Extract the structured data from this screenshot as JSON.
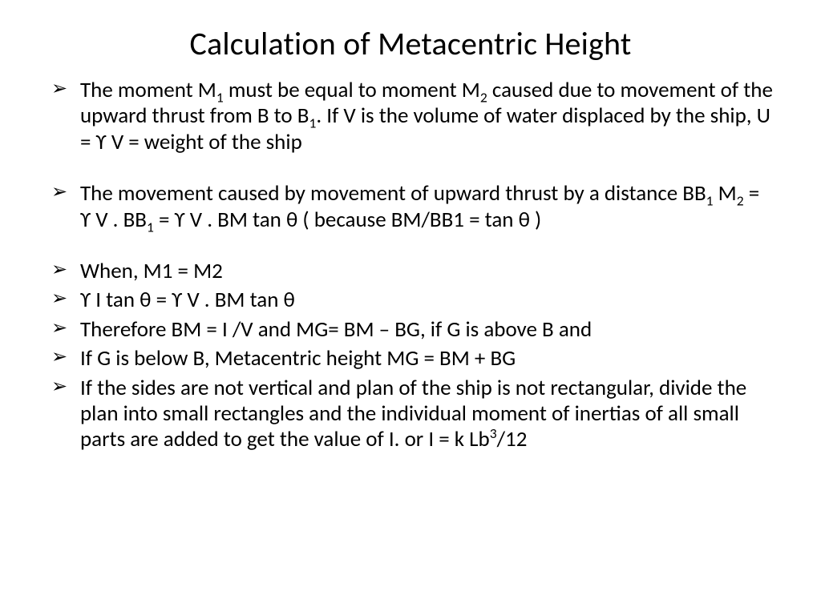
{
  "title": "Calculation of Metacentric Height",
  "bullets": [
    {
      "html": "The moment M<sub>1</sub> must be equal to moment M<sub>2</sub> caused due to movement of the upward thrust from B to B<sub>1</sub>. If V is the volume of water displaced by the ship, U =  ϒ V = weight of the ship",
      "gap": false
    },
    {
      "html": "The movement caused by movement of upward thrust by a distance BB<sub>1</sub> M<sub>2</sub>  =   ϒ V . BB<sub>1</sub> =   ϒ V . BM tan θ ( because BM/BB1 = tan θ )",
      "gap": true
    },
    {
      "html": "When,  M1 = M2",
      "gap": true
    },
    {
      "html": "ϒ I tan θ    = ϒ V . BM tan θ",
      "gap": false
    },
    {
      "html": "Therefore BM = I /V and MG=  BM – BG, if G is above B and",
      "gap": false
    },
    {
      "html": "If   G is below B,   Metacentric height MG = BM + BG",
      "gap": false
    },
    {
      "html": "If the sides are not vertical and plan of the ship is not rectangular, divide the plan into small rectangles and the individual moment of inertias of all small parts are added to get the value of I. or I = k Lb<sup>3</sup>/12",
      "gap": false
    }
  ],
  "colors": {
    "background": "#ffffff",
    "text": "#000000"
  },
  "typography": {
    "title_fontsize": 40,
    "body_fontsize": 27,
    "font_family": "Calibri"
  }
}
